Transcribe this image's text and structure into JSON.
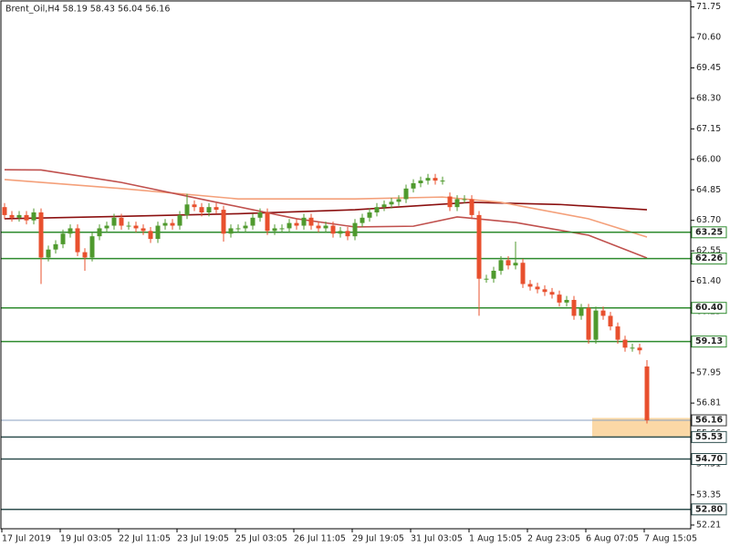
{
  "chart_data": {
    "type": "candlestick",
    "title": "Brent_Oil,H4  58.19 58.43 56.04 56.16",
    "categories": [
      "17 Jul 2019",
      null,
      null,
      null,
      null,
      null,
      null,
      null,
      "19 Jul 03:05",
      null,
      null,
      null,
      null,
      null,
      null,
      null,
      "22 Jul 11:05",
      null,
      null,
      null,
      null,
      null,
      null,
      null,
      "23 Jul 19:05",
      null,
      null,
      null,
      null,
      null,
      null,
      null,
      "25 Jul 03:05",
      null,
      null,
      null,
      null,
      null,
      null,
      null,
      "26 Jul 11:05",
      null,
      null,
      null,
      null,
      null,
      null,
      null,
      "29 Jul 19:05",
      null,
      null,
      null,
      null,
      null,
      null,
      null,
      "31 Jul 03:05",
      null,
      null,
      null,
      null,
      null,
      null,
      null,
      "1 Aug 15:05",
      null,
      null,
      null,
      null,
      null,
      null,
      null,
      "2 Aug 23:05",
      null,
      null,
      null,
      null,
      null,
      null,
      null,
      "6 Aug 07:05",
      null,
      null,
      null,
      null,
      null,
      null,
      null,
      "7 Aug 15:05"
    ],
    "open": [
      64.2,
      63.9,
      63.8,
      63.9,
      63.7,
      64.0,
      62.3,
      62.6,
      62.8,
      63.2,
      63.4,
      62.5,
      62.3,
      63.1,
      63.4,
      63.5,
      63.8,
      63.5,
      63.5,
      63.4,
      63.3,
      63.0,
      63.5,
      63.6,
      63.5,
      63.9,
      64.3,
      64.2,
      64.0,
      64.2,
      64.1,
      63.2,
      63.4,
      63.4,
      63.5,
      63.8,
      64.0,
      63.3,
      63.4,
      63.4,
      63.6,
      63.5,
      63.8,
      63.5,
      63.4,
      63.5,
      63.2,
      63.3,
      63.1,
      63.6,
      63.8,
      64.0,
      64.2,
      64.3,
      64.4,
      64.5,
      64.9,
      65.1,
      65.2,
      65.3,
      65.2,
      64.6,
      64.2,
      64.5,
      64.5,
      63.9,
      61.5,
      61.5,
      61.8,
      62.2,
      62.0,
      62.1,
      61.3,
      61.2,
      61.1,
      61.0,
      60.9,
      60.6,
      60.7,
      60.1,
      60.4,
      59.2,
      60.3,
      60.1,
      59.7,
      59.2,
      58.9,
      58.9,
      58.19
    ],
    "high": [
      64.35,
      64.05,
      64.05,
      64.05,
      64.15,
      64.15,
      62.75,
      62.95,
      63.35,
      63.55,
      63.55,
      62.65,
      63.25,
      63.55,
      63.65,
      63.95,
      63.95,
      63.65,
      63.65,
      63.55,
      63.45,
      63.65,
      63.75,
      63.75,
      64.05,
      64.7,
      64.45,
      64.35,
      64.35,
      64.35,
      64.25,
      63.55,
      63.55,
      63.65,
      63.95,
      64.15,
      64.15,
      63.55,
      63.55,
      63.75,
      63.75,
      63.95,
      63.95,
      63.65,
      63.65,
      63.65,
      63.45,
      63.45,
      63.75,
      63.95,
      64.15,
      64.35,
      64.45,
      64.55,
      64.65,
      65.05,
      65.25,
      65.35,
      65.45,
      65.45,
      65.35,
      64.75,
      64.65,
      64.65,
      64.65,
      64.05,
      61.65,
      61.95,
      62.35,
      62.35,
      62.9,
      62.25,
      61.45,
      61.35,
      61.25,
      61.15,
      61.05,
      60.85,
      60.85,
      60.55,
      60.55,
      60.45,
      60.45,
      60.25,
      59.85,
      59.35,
      59.05,
      59.05,
      58.43
    ],
    "low": [
      63.75,
      63.65,
      63.65,
      63.55,
      63.55,
      61.3,
      62.15,
      62.45,
      62.65,
      63.05,
      62.35,
      61.8,
      62.15,
      62.95,
      63.25,
      63.35,
      63.35,
      63.35,
      63.25,
      63.15,
      62.85,
      62.85,
      63.35,
      63.35,
      63.35,
      63.75,
      64.05,
      63.85,
      63.85,
      63.95,
      62.9,
      63.05,
      63.25,
      63.25,
      63.35,
      63.65,
      63.15,
      63.15,
      63.25,
      63.25,
      63.35,
      63.35,
      63.35,
      63.25,
      63.25,
      63.05,
      63.05,
      62.95,
      62.95,
      63.45,
      63.65,
      63.85,
      64.05,
      64.15,
      64.25,
      64.35,
      64.75,
      64.95,
      65.05,
      65.05,
      65.05,
      64.05,
      64.05,
      64.35,
      63.75,
      60.1,
      61.35,
      61.35,
      61.65,
      61.85,
      61.85,
      61.15,
      61.05,
      60.95,
      60.85,
      60.75,
      60.45,
      60.45,
      59.95,
      59.95,
      59.05,
      59.05,
      59.95,
      59.55,
      59.05,
      58.75,
      58.75,
      58.65,
      56.04
    ],
    "close": [
      63.9,
      63.8,
      63.9,
      63.7,
      64.0,
      62.3,
      62.6,
      62.8,
      63.2,
      63.4,
      62.5,
      62.3,
      63.1,
      63.4,
      63.5,
      63.8,
      63.5,
      63.5,
      63.4,
      63.3,
      63.0,
      63.5,
      63.6,
      63.5,
      63.9,
      64.3,
      64.2,
      64.0,
      64.2,
      64.1,
      63.2,
      63.4,
      63.4,
      63.5,
      63.8,
      64.0,
      63.3,
      63.4,
      63.4,
      63.6,
      63.5,
      63.8,
      63.5,
      63.4,
      63.5,
      63.2,
      63.3,
      63.1,
      63.6,
      63.8,
      64.0,
      64.2,
      64.3,
      64.4,
      64.5,
      64.9,
      65.1,
      65.2,
      65.3,
      65.2,
      65.2,
      64.2,
      64.5,
      64.5,
      63.9,
      61.5,
      61.5,
      61.8,
      62.2,
      62.0,
      62.1,
      61.3,
      61.2,
      61.1,
      61.0,
      60.9,
      60.6,
      60.7,
      60.1,
      60.4,
      59.2,
      60.3,
      60.1,
      59.7,
      59.2,
      58.9,
      58.9,
      58.8,
      56.16
    ],
    "up_color": "#4f9a2e",
    "down_color": "#e8502e",
    "ylim": [
      52.07,
      72.01
    ],
    "yticks": [
      71.75,
      {
        "value": 70.6,
        "label": "70.60"
      },
      69.45,
      {
        "value": 68.3,
        "label": "68.30"
      },
      67.15,
      {
        "value": 66,
        "label": "66.00"
      },
      64.85,
      {
        "value": 63.7,
        "label": "63.70"
      },
      62.55,
      {
        "value": 61.4,
        "label": "61.40"
      },
      60.25,
      {
        "value": 59.1,
        "label": "59.10"
      },
      57.95,
      56.81,
      55.66,
      54.51,
      53.35,
      52.21
    ],
    "levels": [
      {
        "value": 63.25,
        "color": "#2e8b2e"
      },
      {
        "value": 62.26,
        "color": "#2e8b2e"
      },
      {
        "value": 60.4,
        "label": "60.40",
        "color": "#2e8b2e"
      },
      {
        "value": 59.13,
        "color": "#2e8b2e"
      },
      {
        "value": 55.53,
        "color": "#2f4f4f"
      },
      {
        "value": 54.7,
        "label": "54.70",
        "color": "#2f4f4f"
      },
      {
        "value": 52.8,
        "label": "52.80",
        "color": "#2f4f4f"
      }
    ],
    "current_price": {
      "value": 56.16,
      "color": "#8aa2c0"
    },
    "moving_averages": [
      {
        "color": "#8b1010",
        "x": [
          0,
          16,
          32,
          48,
          64,
          76,
          88
        ],
        "values": [
          63.76,
          63.85,
          63.95,
          64.1,
          64.38,
          64.3,
          64.1
        ]
      },
      {
        "color": "#f4a07a",
        "x": [
          0,
          16,
          32,
          48,
          60,
          68,
          80,
          88
        ],
        "values": [
          65.24,
          64.9,
          64.51,
          64.51,
          64.58,
          64.38,
          63.76,
          63.07
        ]
      },
      {
        "color": "#c0504d",
        "x": [
          0,
          5,
          16,
          28,
          40,
          48,
          56,
          62,
          70,
          80,
          88
        ],
        "values": [
          65.61,
          65.6,
          65.13,
          64.44,
          63.76,
          63.45,
          63.48,
          63.83,
          63.62,
          63.14,
          62.28
        ]
      }
    ],
    "zone": {
      "start": 81,
      "top": 56.25,
      "bottom": 55.55,
      "color": "#fbd8a6"
    }
  }
}
